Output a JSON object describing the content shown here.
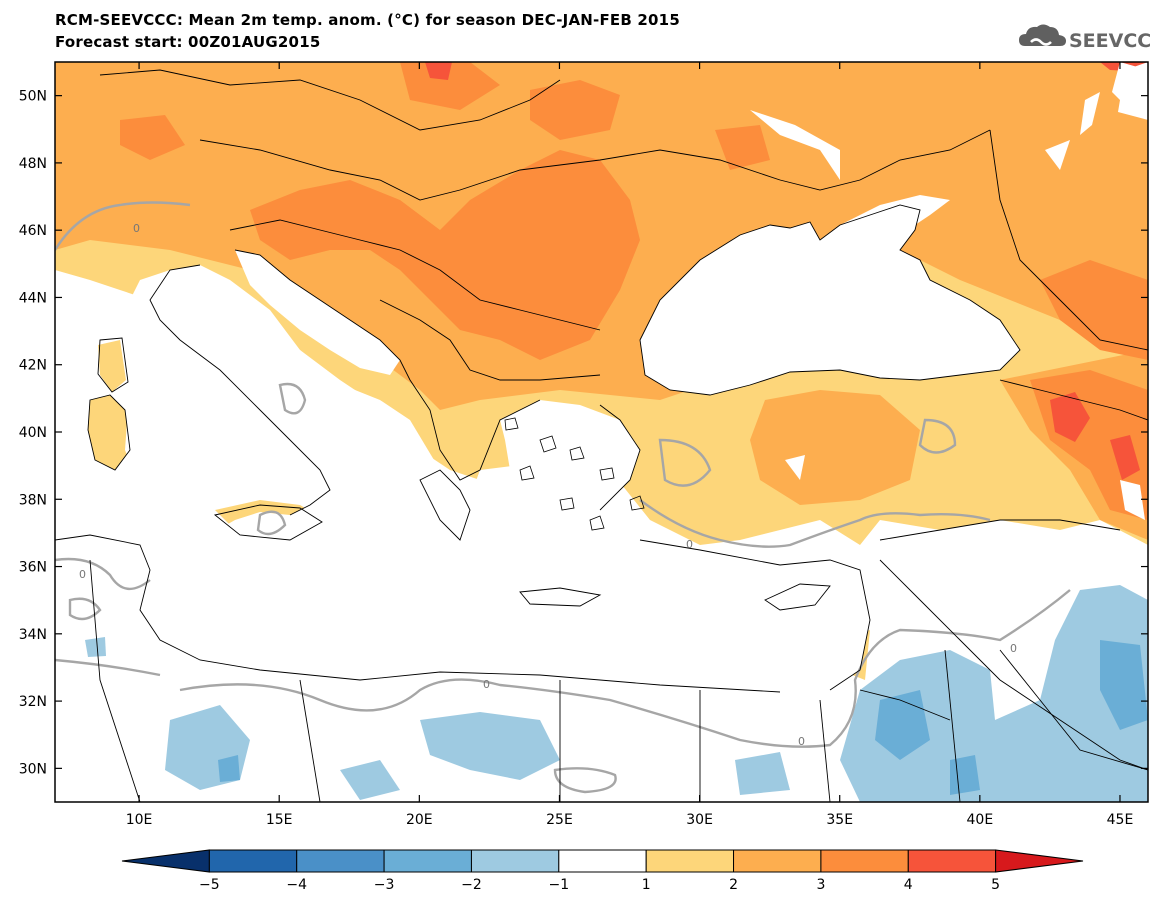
{
  "header": {
    "title_line1": "RCM-SEEVCCC: Mean 2m temp. anom. (°C) for season DEC-JAN-FEB 2015",
    "title_line2": "Forecast start: 00Z01AUG2015"
  },
  "logo": {
    "text": "SEEVCCC",
    "icon": "cloud-icon"
  },
  "map": {
    "lon_ticks": [
      "10E",
      "15E",
      "20E",
      "25E",
      "30E",
      "35E",
      "40E",
      "45E"
    ],
    "lat_ticks": [
      "50N",
      "48N",
      "46N",
      "44N",
      "42N",
      "40N",
      "38N",
      "36N",
      "34N",
      "32N",
      "30N"
    ],
    "lon_range": [
      7,
      46
    ],
    "lat_range": [
      29,
      51
    ],
    "contour_labels": [
      "0",
      "0",
      "0",
      "0",
      "0",
      "0"
    ]
  },
  "colorbar": {
    "labels": [
      "-5",
      "-4",
      "-3",
      "-2",
      "-1",
      "1",
      "2",
      "3",
      "4",
      "5"
    ],
    "colors": [
      "#08306b",
      "#2166ac",
      "#4a90c8",
      "#6aaed6",
      "#9ecae1",
      "#ffffff",
      "#fdd67a",
      "#fdae4f",
      "#fc8d3c",
      "#f6543a",
      "#d7191c"
    ]
  }
}
